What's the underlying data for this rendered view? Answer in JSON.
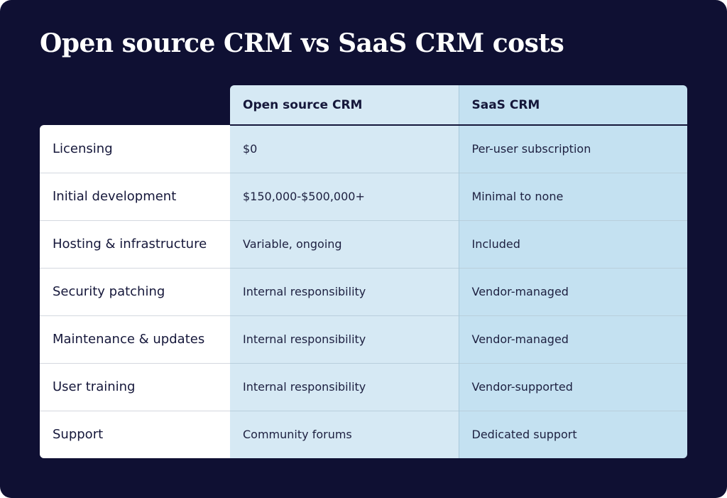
{
  "title": "Open source CRM vs SaaS CRM costs",
  "chart_data": {
    "type": "table",
    "title": "Open source CRM vs SaaS CRM costs",
    "columns": [
      "",
      "Open source CRM",
      "SaaS CRM"
    ],
    "rows": [
      {
        "label": "Licensing",
        "open_source": "$0",
        "saas": "Per-user subscription"
      },
      {
        "label": "Initial development",
        "open_source": "$150,000-$500,000+",
        "saas": "Minimal to none"
      },
      {
        "label": "Hosting & infrastructure",
        "open_source": "Variable, ongoing",
        "saas": "Included"
      },
      {
        "label": "Security patching",
        "open_source": "Internal responsibility",
        "saas": "Vendor-managed"
      },
      {
        "label": "Maintenance & updates",
        "open_source": "Internal responsibility",
        "saas": "Vendor-managed"
      },
      {
        "label": "User training",
        "open_source": "Internal responsibility",
        "saas": "Vendor-supported"
      },
      {
        "label": "Support",
        "open_source": "Community forums",
        "saas": "Dedicated support"
      }
    ]
  },
  "colors": {
    "background": "#0f1033",
    "open_source_column": "#d6e9f4",
    "saas_column": "#c4e1f1",
    "label_column": "#ffffff",
    "text": "#15173a"
  }
}
